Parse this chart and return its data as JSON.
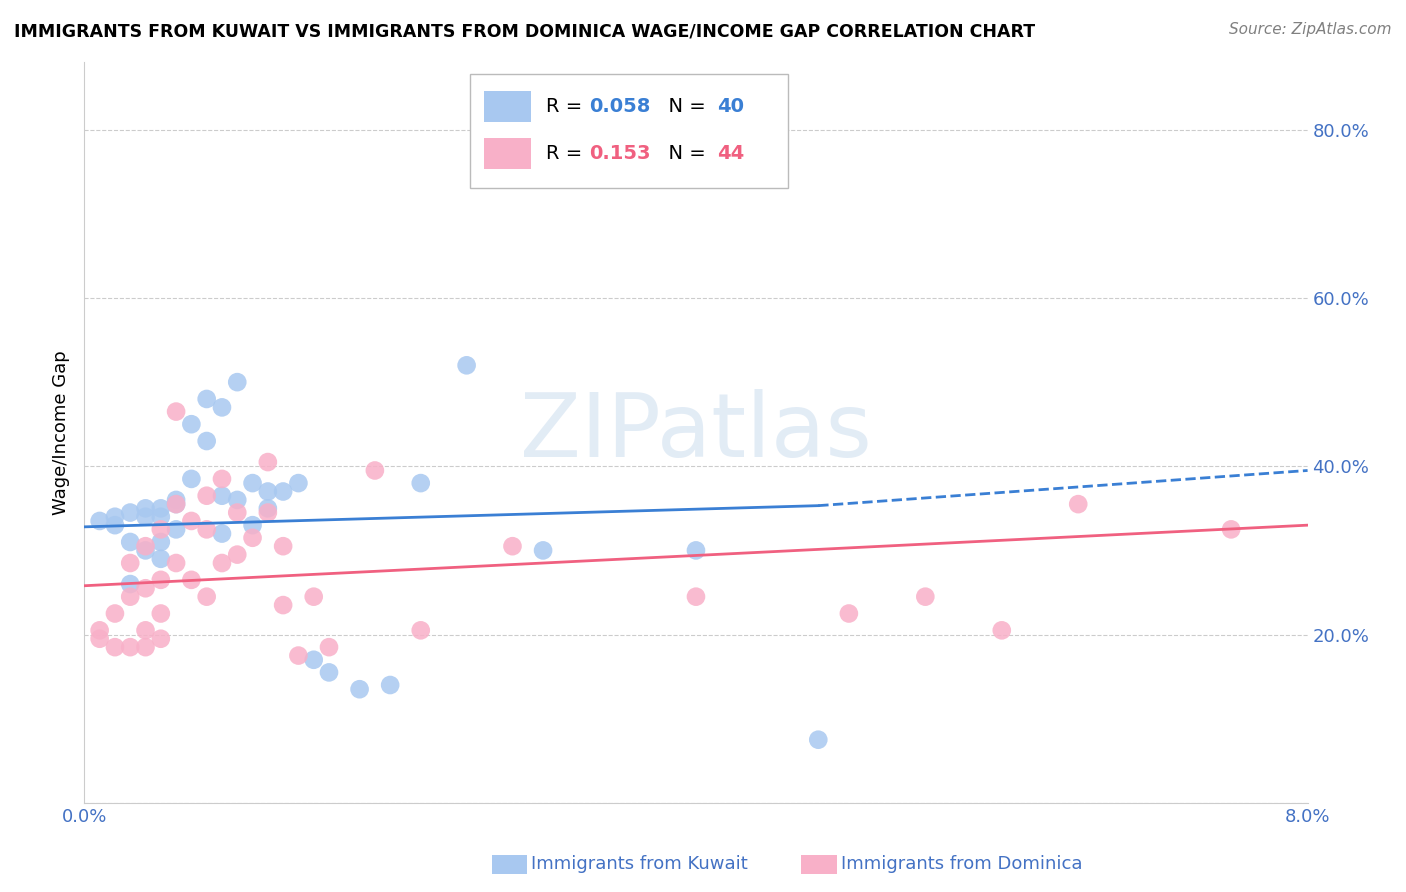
{
  "title": "IMMIGRANTS FROM KUWAIT VS IMMIGRANTS FROM DOMINICA WAGE/INCOME GAP CORRELATION CHART",
  "source": "Source: ZipAtlas.com",
  "ylabel": "Wage/Income Gap",
  "xlim": [
    0.0,
    0.08
  ],
  "ylim": [
    0.0,
    0.88
  ],
  "kuwait_R": 0.058,
  "kuwait_N": 40,
  "dominica_R": 0.153,
  "dominica_N": 44,
  "kuwait_color": "#A8C8F0",
  "dominica_color": "#F8B0C8",
  "kuwait_line_color": "#3A7FD4",
  "dominica_line_color": "#F06080",
  "axis_color": "#4472C4",
  "kuwait_x": [
    0.001,
    0.002,
    0.002,
    0.003,
    0.003,
    0.003,
    0.004,
    0.004,
    0.004,
    0.005,
    0.005,
    0.005,
    0.005,
    0.006,
    0.006,
    0.006,
    0.007,
    0.007,
    0.008,
    0.008,
    0.009,
    0.009,
    0.009,
    0.01,
    0.01,
    0.011,
    0.011,
    0.012,
    0.012,
    0.013,
    0.014,
    0.015,
    0.016,
    0.018,
    0.02,
    0.022,
    0.025,
    0.03,
    0.04,
    0.048
  ],
  "kuwait_y": [
    0.335,
    0.34,
    0.33,
    0.345,
    0.31,
    0.26,
    0.35,
    0.34,
    0.3,
    0.35,
    0.34,
    0.31,
    0.29,
    0.355,
    0.36,
    0.325,
    0.45,
    0.385,
    0.48,
    0.43,
    0.47,
    0.365,
    0.32,
    0.5,
    0.36,
    0.38,
    0.33,
    0.37,
    0.35,
    0.37,
    0.38,
    0.17,
    0.155,
    0.135,
    0.14,
    0.38,
    0.52,
    0.3,
    0.3,
    0.075
  ],
  "dominica_x": [
    0.001,
    0.001,
    0.002,
    0.002,
    0.003,
    0.003,
    0.003,
    0.004,
    0.004,
    0.004,
    0.004,
    0.005,
    0.005,
    0.005,
    0.005,
    0.006,
    0.006,
    0.006,
    0.007,
    0.007,
    0.008,
    0.008,
    0.008,
    0.009,
    0.009,
    0.01,
    0.01,
    0.011,
    0.012,
    0.012,
    0.013,
    0.013,
    0.014,
    0.015,
    0.016,
    0.019,
    0.022,
    0.028,
    0.04,
    0.05,
    0.055,
    0.06,
    0.065,
    0.075
  ],
  "dominica_y": [
    0.205,
    0.195,
    0.225,
    0.185,
    0.285,
    0.245,
    0.185,
    0.305,
    0.255,
    0.205,
    0.185,
    0.325,
    0.265,
    0.225,
    0.195,
    0.355,
    0.465,
    0.285,
    0.335,
    0.265,
    0.365,
    0.325,
    0.245,
    0.385,
    0.285,
    0.345,
    0.295,
    0.315,
    0.405,
    0.345,
    0.305,
    0.235,
    0.175,
    0.245,
    0.185,
    0.395,
    0.205,
    0.305,
    0.245,
    0.225,
    0.245,
    0.205,
    0.355,
    0.325
  ]
}
